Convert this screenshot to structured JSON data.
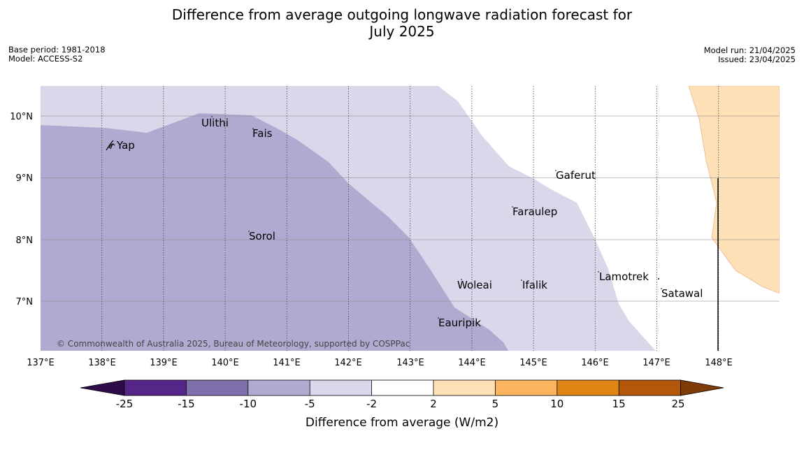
{
  "title": {
    "line1": "Difference from average outgoing longwave radiation forecast for",
    "line2": "July 2025"
  },
  "meta_left": {
    "base_period": "Base period: 1981-2018",
    "model": "Model: ACCESS-S2"
  },
  "meta_right": {
    "model_run": "Model run: 21/04/2025",
    "issued": "Issued: 23/04/2025"
  },
  "map": {
    "lat_labels": [
      "10°N",
      "9°N",
      "8°N",
      "7°N"
    ],
    "lon_labels": [
      "137°E",
      "138°E",
      "139°E",
      "140°E",
      "141°E",
      "142°E",
      "143°E",
      "144°E",
      "145°E",
      "146°E",
      "147°E",
      "148°E"
    ],
    "places": {
      "ulithi": "Ulithi",
      "fais": "Fais",
      "yap": "Yap",
      "sorol": "Sorol",
      "gaferut": "Gaferut",
      "faraulep": "Faraulep",
      "lamotrek": "Lamotrek",
      "woleai": "Woleai",
      "ifalik": "Ifalik",
      "satawal": "Satawal",
      "eauripik": "Eauripik"
    },
    "copyright": "© Commonwealth of Australia 2025, Bureau of Meteorology, supported by COSPPac",
    "colors": {
      "band_-10_-5": "#b0aad1",
      "band_-5_-2": "#d8d8ea",
      "band_2_5": "#fde0b6"
    }
  },
  "colorbar": {
    "ticks": [
      "-25",
      "-15",
      "-10",
      "-5",
      "-2",
      "2",
      "5",
      "10",
      "15",
      "25"
    ],
    "colors": [
      "#2e0c4a",
      "#552688",
      "#7f6faa",
      "#b0aad1",
      "#d8d8ea",
      "#ffffff",
      "#fde0b6",
      "#fbb55f",
      "#e18515",
      "#b4570a",
      "#7f3b08"
    ],
    "title": "Difference from average (W/m2)"
  }
}
